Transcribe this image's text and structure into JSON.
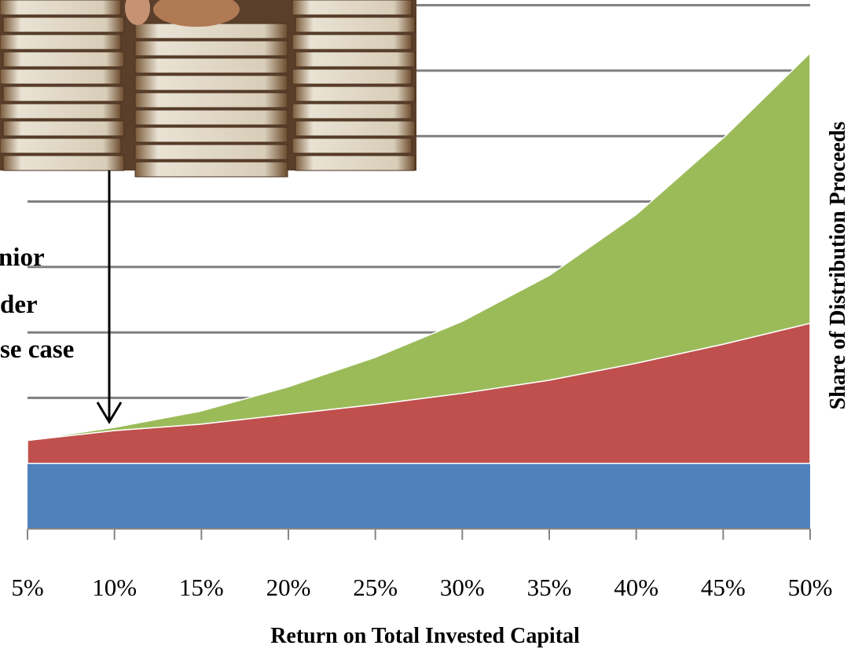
{
  "chart_data": {
    "type": "area",
    "stacked": true,
    "x": [
      "5%",
      "10%",
      "15%",
      "20%",
      "25%",
      "30%",
      "35%",
      "40%",
      "45%",
      "50%"
    ],
    "xlabel": "Return on Total Invested Capital",
    "ylabel": "Share of Distribution Proceeds",
    "ylim": [
      0,
      8
    ],
    "grid": true,
    "series": [
      {
        "color": "#4F81BD",
        "values": [
          1.0,
          1.0,
          1.0,
          1.0,
          1.0,
          1.0,
          1.0,
          1.0,
          1.0,
          1.0
        ]
      },
      {
        "color": "#C0504D",
        "values": [
          0.35,
          0.5,
          0.6,
          0.75,
          0.9,
          1.07,
          1.27,
          1.53,
          1.82,
          2.14
        ]
      },
      {
        "color": "#9BBB59",
        "values": [
          0.0,
          0.05,
          0.2,
          0.42,
          0.72,
          1.1,
          1.6,
          2.27,
          3.15,
          4.13
        ]
      }
    ],
    "annotations": {
      "lines": [
        "nior",
        "der",
        "se case"
      ]
    },
    "colors": {
      "gridline": "#7F7F7F",
      "axis": "#868686",
      "arrow": "#000000"
    }
  },
  "photo": {
    "description_icon": "stacked-books-photo-icon"
  }
}
